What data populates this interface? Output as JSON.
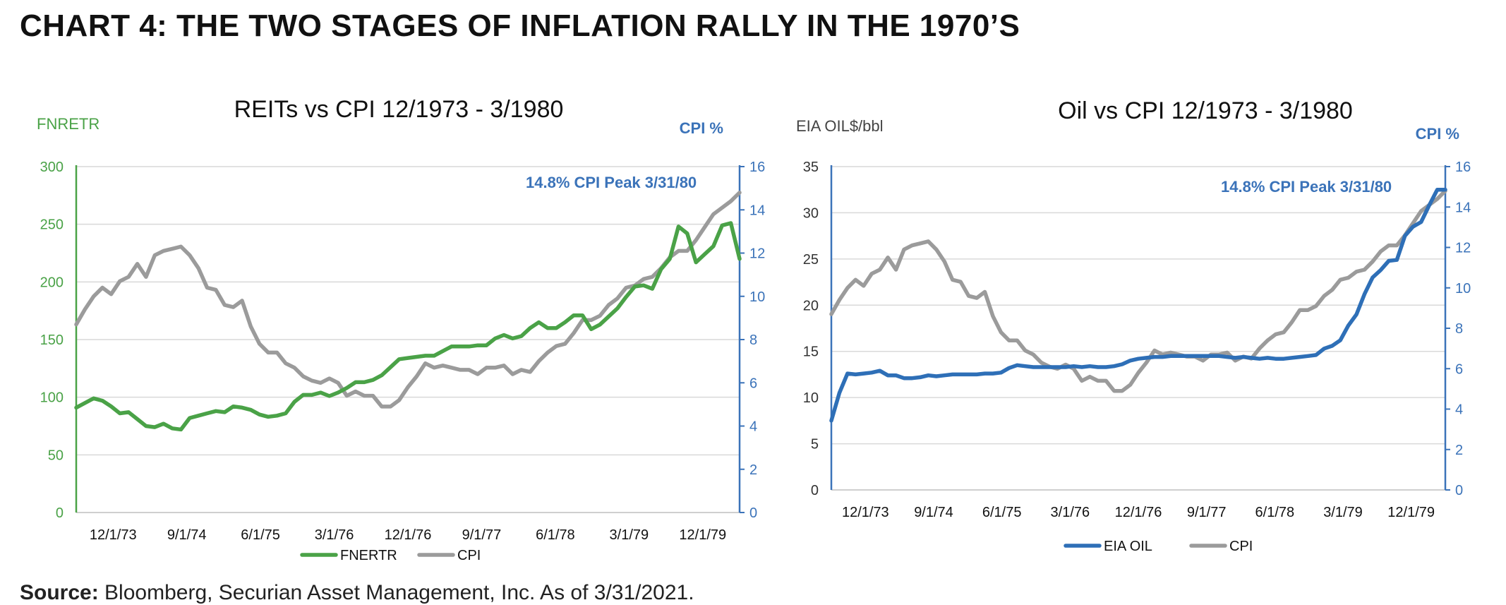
{
  "page": {
    "title": "CHART 4: THE TWO STAGES OF INFLATION RALLY IN THE 1970’S",
    "source_label": "Source:",
    "source_text": "Bloomberg, Securian Asset Management, Inc. As of 3/31/2021."
  },
  "colors": {
    "green": "#4aa247",
    "blue": "#2e6fb7",
    "gray": "#9b9b9b",
    "axis_label_blue": "#3b73b9",
    "grid": "#d9d9d9"
  },
  "chart_data": [
    {
      "type": "line",
      "title": "REITs vs CPI 12/1973 - 3/1980",
      "left_axis_label": "FNRETR",
      "right_axis_label": "CPI %",
      "annotation": "14.8% CPI Peak 3/31/80",
      "x_ticks": [
        "12/1/73",
        "9/1/74",
        "6/1/75",
        "3/1/76",
        "12/1/76",
        "9/1/77",
        "6/1/78",
        "3/1/79",
        "12/1/79"
      ],
      "x_range": [
        0,
        76
      ],
      "y_left": {
        "ticks": [
          0,
          50,
          100,
          150,
          200,
          250,
          300
        ],
        "ylim": [
          0,
          300
        ]
      },
      "y_right": {
        "ticks": [
          0,
          2,
          4,
          6,
          8,
          10,
          12,
          14,
          16
        ],
        "ylim": [
          0,
          16
        ]
      },
      "grid": true,
      "legend_position": "bottom",
      "series": [
        {
          "name": "FNERTR",
          "axis": "left",
          "color_key": "green",
          "values": [
            91,
            95,
            99,
            97,
            92,
            86,
            87,
            81,
            75,
            74,
            77,
            73,
            72,
            82,
            84,
            86,
            88,
            87,
            92,
            91,
            89,
            85,
            83,
            84,
            86,
            96,
            102,
            102,
            104,
            101,
            104,
            108,
            113,
            113,
            115,
            119,
            126,
            133,
            134,
            135,
            136,
            136,
            140,
            144,
            144,
            144,
            145,
            145,
            151,
            154,
            151,
            153,
            160,
            165,
            160,
            160,
            165,
            171,
            171,
            159,
            163,
            170,
            177,
            187,
            196,
            197,
            194,
            211,
            220,
            248,
            242,
            217,
            224,
            231,
            249,
            251,
            220
          ]
        },
        {
          "name": "CPI",
          "axis": "right",
          "color_key": "gray",
          "values": [
            8.7,
            9.4,
            10.0,
            10.4,
            10.1,
            10.7,
            10.9,
            11.5,
            10.9,
            11.9,
            12.1,
            12.2,
            12.3,
            11.9,
            11.3,
            10.4,
            10.3,
            9.6,
            9.5,
            9.8,
            8.6,
            7.8,
            7.4,
            7.4,
            6.9,
            6.7,
            6.3,
            6.1,
            6.0,
            6.2,
            6.0,
            5.4,
            5.6,
            5.4,
            5.4,
            4.9,
            4.9,
            5.2,
            5.8,
            6.3,
            6.9,
            6.7,
            6.8,
            6.7,
            6.6,
            6.6,
            6.4,
            6.7,
            6.7,
            6.8,
            6.4,
            6.6,
            6.5,
            7.0,
            7.4,
            7.7,
            7.8,
            8.3,
            8.9,
            8.9,
            9.1,
            9.6,
            9.9,
            10.4,
            10.5,
            10.8,
            10.9,
            11.3,
            11.8,
            12.1,
            12.1,
            12.6,
            13.2,
            13.8,
            14.1,
            14.4,
            14.8
          ]
        }
      ]
    },
    {
      "type": "line",
      "title": "Oil vs CPI 12/1973 - 3/1980",
      "left_axis_label": "EIA OIL$/bbl",
      "right_axis_label": "CPI %",
      "annotation": "14.8% CPI Peak 3/31/80",
      "x_ticks": [
        "12/1/73",
        "9/1/74",
        "6/1/75",
        "3/1/76",
        "12/1/76",
        "9/1/77",
        "6/1/78",
        "3/1/79",
        "12/1/79"
      ],
      "x_range": [
        0,
        76
      ],
      "y_left": {
        "ticks": [
          0,
          5,
          10,
          15,
          20,
          25,
          30,
          35
        ],
        "ylim": [
          0,
          35
        ]
      },
      "y_right": {
        "ticks": [
          0,
          2,
          4,
          6,
          8,
          10,
          12,
          14,
          16
        ],
        "ylim": [
          0,
          16
        ]
      },
      "grid": true,
      "legend_position": "bottom",
      "series": [
        {
          "name": "EIA OIL",
          "axis": "left",
          "color_key": "blue",
          "values": [
            7.5,
            10.5,
            12.6,
            12.5,
            12.6,
            12.7,
            12.9,
            12.4,
            12.4,
            12.1,
            12.1,
            12.2,
            12.4,
            12.3,
            12.4,
            12.5,
            12.5,
            12.5,
            12.5,
            12.6,
            12.6,
            12.7,
            13.2,
            13.5,
            13.4,
            13.3,
            13.3,
            13.3,
            13.3,
            13.3,
            13.4,
            13.3,
            13.4,
            13.3,
            13.3,
            13.4,
            13.6,
            14.0,
            14.2,
            14.3,
            14.4,
            14.4,
            14.5,
            14.5,
            14.5,
            14.5,
            14.5,
            14.5,
            14.5,
            14.4,
            14.3,
            14.4,
            14.3,
            14.2,
            14.3,
            14.2,
            14.2,
            14.3,
            14.4,
            14.5,
            14.6,
            15.3,
            15.6,
            16.2,
            17.8,
            19.0,
            21.2,
            23.0,
            23.8,
            24.8,
            24.9,
            27.5,
            28.5,
            29.0,
            30.8,
            32.5,
            32.5
          ]
        },
        {
          "name": "CPI",
          "axis": "right",
          "color_key": "gray",
          "values": [
            8.7,
            9.4,
            10.0,
            10.4,
            10.1,
            10.7,
            10.9,
            11.5,
            10.9,
            11.9,
            12.1,
            12.2,
            12.3,
            11.9,
            11.3,
            10.4,
            10.3,
            9.6,
            9.5,
            9.8,
            8.6,
            7.8,
            7.4,
            7.4,
            6.9,
            6.7,
            6.3,
            6.1,
            6.0,
            6.2,
            6.0,
            5.4,
            5.6,
            5.4,
            5.4,
            4.9,
            4.9,
            5.2,
            5.8,
            6.3,
            6.9,
            6.7,
            6.8,
            6.7,
            6.6,
            6.6,
            6.4,
            6.7,
            6.7,
            6.8,
            6.4,
            6.6,
            6.5,
            7.0,
            7.4,
            7.7,
            7.8,
            8.3,
            8.9,
            8.9,
            9.1,
            9.6,
            9.9,
            10.4,
            10.5,
            10.8,
            10.9,
            11.3,
            11.8,
            12.1,
            12.1,
            12.6,
            13.2,
            13.8,
            14.1,
            14.4,
            14.8
          ]
        }
      ]
    }
  ]
}
